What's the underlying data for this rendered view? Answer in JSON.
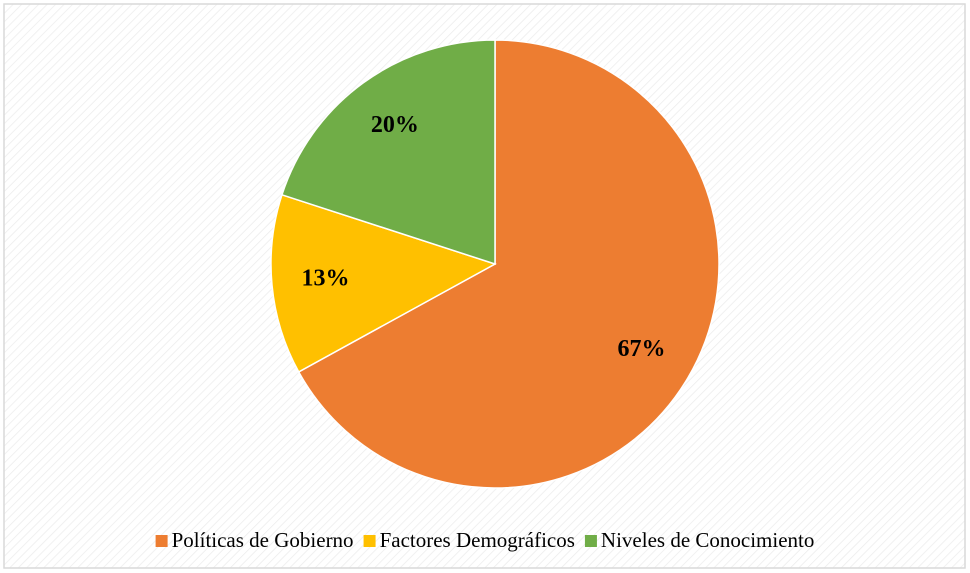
{
  "chart_data": {
    "type": "pie",
    "categories": [
      "Políticas de Gobierno",
      "Factores Demográficos",
      "Niveles de Conocimiento"
    ],
    "values": [
      67,
      13,
      20
    ],
    "value_labels": [
      "67%",
      "13%",
      "20%"
    ],
    "colors": [
      "#ED7D31",
      "#FFC000",
      "#70AD47"
    ],
    "legend": "bottom"
  }
}
